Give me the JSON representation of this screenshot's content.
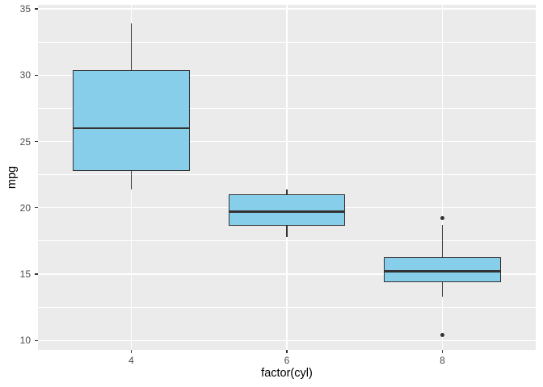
{
  "figure": {
    "background": "#FFFFFF"
  },
  "chart_data": {
    "type": "boxplot",
    "title": "",
    "xlabel": "factor(cyl)",
    "ylabel": "mpg",
    "categories": [
      "4",
      "6",
      "8"
    ],
    "yticks": [
      10,
      15,
      20,
      25,
      30,
      35
    ],
    "yminor": [
      12.5,
      17.5,
      22.5,
      27.5,
      32.5
    ],
    "ylim": [
      9.2,
      35.1
    ],
    "grid": "on",
    "legend": "none",
    "series": [
      {
        "category": "4",
        "lower_whisker": 21.4,
        "q1": 22.8,
        "median": 26.0,
        "q3": 30.4,
        "upper_whisker": 33.9,
        "outliers": []
      },
      {
        "category": "6",
        "lower_whisker": 17.8,
        "q1": 18.65,
        "median": 19.7,
        "q3": 21.0,
        "upper_whisker": 21.4,
        "outliers": []
      },
      {
        "category": "8",
        "lower_whisker": 13.3,
        "q1": 14.4,
        "median": 15.2,
        "q3": 16.25,
        "upper_whisker": 18.7,
        "outliers": [
          19.2,
          10.4
        ]
      }
    ],
    "colors": {
      "box_fill": "#87CEEB",
      "box_border": "#333333",
      "median_line": "#333333",
      "outlier": "#333333",
      "panel_background": "#EBEBEB",
      "gridline": "#FFFFFF",
      "axis_text": "#4D4D4D",
      "axis_title": "#000000",
      "tick_mark": "#333333",
      "figure_background": "#FFFFFF"
    }
  }
}
